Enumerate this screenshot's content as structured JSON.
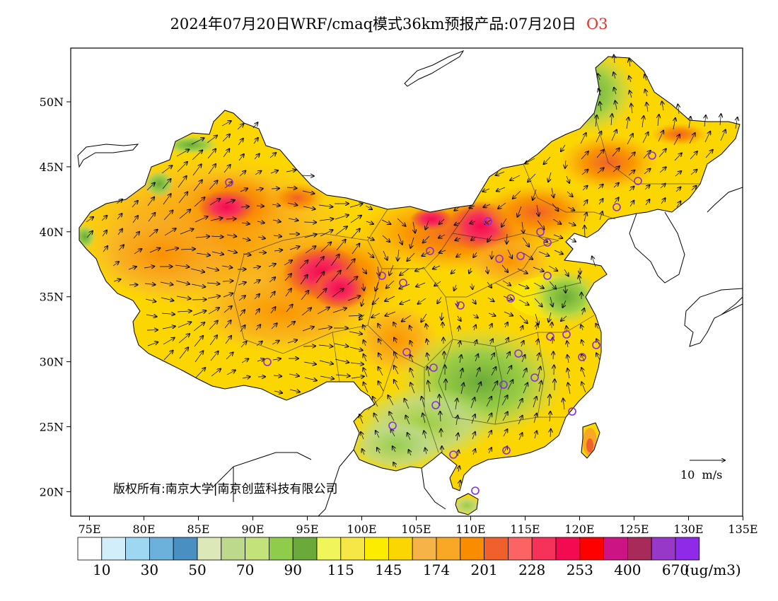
{
  "title": {
    "text": "2024年07月20日WRF/cmaq模式36km预报产品:07月20日",
    "species": "O3",
    "species_color": "#e8302a"
  },
  "axes": {
    "x_ticks": [
      "75E",
      "80E",
      "85E",
      "90E",
      "95E",
      "100E",
      "105E",
      "110E",
      "115E",
      "120E",
      "125E",
      "130E",
      "135E"
    ],
    "y_ticks": [
      "50N",
      "45N",
      "40N",
      "35N",
      "30N",
      "25N",
      "20N"
    ]
  },
  "credit": "版权所有:南京大学|南京创蓝科技有限公司",
  "wind_legend": {
    "label": "10  m/s"
  },
  "colorbar": {
    "colors": [
      "#ffffff",
      "#d2eefa",
      "#9ed7f2",
      "#6cb1dc",
      "#4a8fc2",
      "#dce8b8",
      "#bcd98c",
      "#c4e27a",
      "#90cc4c",
      "#6aaa3a",
      "#f0f65a",
      "#f6e646",
      "#fcec00",
      "#fcd600",
      "#f6b448",
      "#f8a824",
      "#fa8c00",
      "#f0602c",
      "#fc6464",
      "#f6325a",
      "#f40a50",
      "#ff0000",
      "#cc1484",
      "#a82a5a",
      "#9838c8",
      "#8e2ae8"
    ],
    "labels": [
      "10",
      "30",
      "50",
      "70",
      "90",
      "115",
      "145",
      "174",
      "201",
      "228",
      "253",
      "400",
      "670"
    ],
    "units": "(ug/m3)"
  },
  "stations_color": "#8a2be2",
  "coast_color": "#000000"
}
